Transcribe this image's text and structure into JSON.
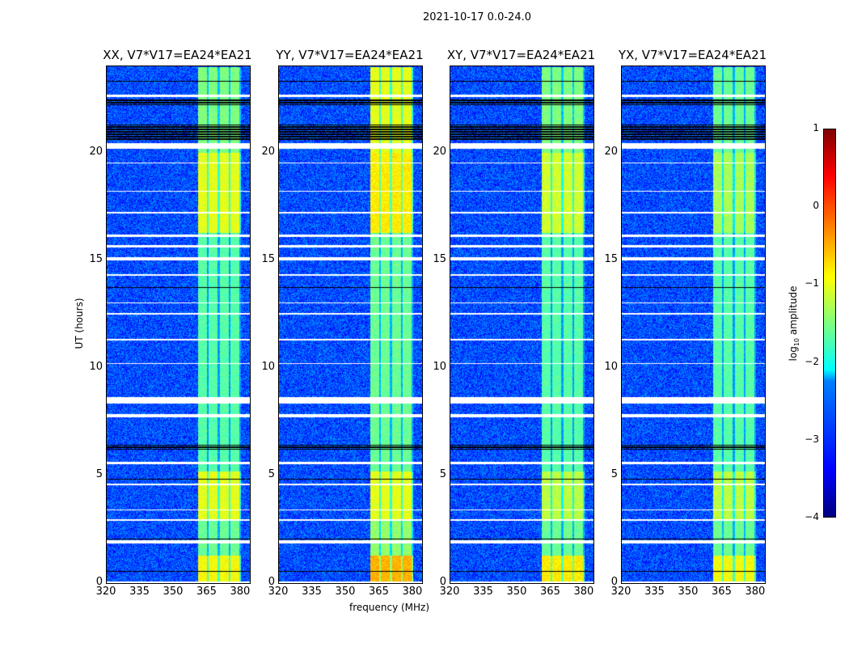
{
  "suptitle": "2021-10-17 0.0-24.0",
  "chart_data": {
    "type": "heatmap",
    "xlabel": "frequency (MHz)",
    "ylabel": "UT (hours)",
    "xlim": [
      320,
      384
    ],
    "ylim": [
      0,
      24
    ],
    "xticks": [
      "320",
      "335",
      "350",
      "365",
      "380"
    ],
    "yticks": [
      "0",
      "5",
      "10",
      "15",
      "20"
    ],
    "colorbar": {
      "label": "log10 amplitude",
      "label_main": "log",
      "label_sub": "10",
      "label_end": " amplitude",
      "range": [
        -4,
        1
      ],
      "ticks": [
        "1",
        "0",
        "−1",
        "−2",
        "−3",
        "−4"
      ],
      "colormap": "jet"
    },
    "background_level": -3.0,
    "rfi_band_mhz": [
      360.5,
      380
    ],
    "flagged_white_hours": [
      [
        0,
        0.1
      ],
      [
        1.85,
        2.0
      ],
      [
        2.9,
        2.97
      ],
      [
        3.4,
        3.45
      ],
      [
        4.55,
        4.62
      ],
      [
        5.55,
        5.65
      ],
      [
        7.7,
        7.85
      ],
      [
        8.35,
        8.65
      ],
      [
        10.2,
        10.25
      ],
      [
        11.3,
        11.35
      ],
      [
        12.5,
        12.55
      ],
      [
        13.0,
        13.05
      ],
      [
        14.3,
        14.35
      ],
      [
        15.0,
        15.15
      ],
      [
        15.6,
        15.7
      ],
      [
        16.1,
        16.2
      ],
      [
        17.2,
        17.25
      ],
      [
        18.2,
        18.25
      ],
      [
        19.5,
        19.55
      ],
      [
        20.2,
        20.45
      ],
      [
        22.6,
        22.7
      ]
    ],
    "flagged_black_hours": [
      [
        0.55,
        0.6
      ],
      [
        1.3,
        1.35
      ],
      [
        2.05,
        2.1
      ],
      [
        4.8,
        4.85
      ],
      [
        6.2,
        6.45
      ],
      [
        8.5,
        8.55
      ],
      [
        13.7,
        13.75
      ],
      [
        20.6,
        21.3
      ],
      [
        22.2,
        22.5
      ],
      [
        23.3,
        23.35
      ]
    ],
    "panels": [
      {
        "title": "XX, V7*V17=EA24*EA21",
        "band_levels": [
          [
            0,
            1.3,
            -0.9
          ],
          [
            1.3,
            3,
            -1.6
          ],
          [
            3,
            5.2,
            -1.0
          ],
          [
            5.2,
            16.3,
            -1.7
          ],
          [
            16.3,
            20,
            -1.0
          ],
          [
            20,
            24,
            -1.5
          ]
        ]
      },
      {
        "title": "YY, V7*V17=EA24*EA21",
        "band_levels": [
          [
            0,
            1.3,
            -0.5
          ],
          [
            1.3,
            3,
            -1.4
          ],
          [
            3,
            5.2,
            -1.0
          ],
          [
            5.2,
            16.3,
            -1.6
          ],
          [
            16.3,
            20,
            -0.8
          ],
          [
            20,
            24,
            -1.0
          ]
        ]
      },
      {
        "title": "XY, V7*V17=EA24*EA21",
        "band_levels": [
          [
            0,
            1.3,
            -0.8
          ],
          [
            1.3,
            3,
            -1.6
          ],
          [
            3,
            5.2,
            -1.2
          ],
          [
            5.2,
            16.3,
            -1.7
          ],
          [
            16.3,
            20,
            -1.1
          ],
          [
            20,
            24,
            -1.5
          ]
        ]
      },
      {
        "title": "YX, V7*V17=EA24*EA21",
        "band_levels": [
          [
            0,
            1.3,
            -0.9
          ],
          [
            1.3,
            3,
            -1.6
          ],
          [
            3,
            5.2,
            -1.2
          ],
          [
            5.2,
            16.3,
            -1.7
          ],
          [
            16.3,
            20,
            -1.3
          ],
          [
            20,
            24,
            -1.6
          ]
        ]
      }
    ]
  }
}
